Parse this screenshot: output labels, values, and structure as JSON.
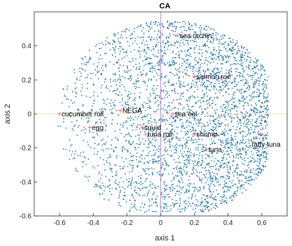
{
  "chart_data": {
    "type": "scatter",
    "title": "CA",
    "xlabel": "axis 1",
    "ylabel": "axis 2",
    "xlim": [
      -0.75,
      0.75
    ],
    "ylim": [
      -0.6,
      0.6
    ],
    "xticks": [
      -0.6,
      -0.4,
      -0.2,
      0,
      0.2,
      0.4,
      0.6
    ],
    "yticks": [
      -0.6,
      -0.4,
      -0.2,
      0,
      0.2,
      0.4
    ],
    "xtick_labels": [
      "-0.6",
      "-0.4",
      "-0.2",
      "0",
      "0.2",
      "0.4",
      "0.6"
    ],
    "ytick_labels": [
      "-0.6",
      "-0.4",
      "-0.2",
      "0",
      "0.2",
      "0.4"
    ],
    "grid": false,
    "respondent_color": "#1f77b4",
    "item_marker_color": "#ff4d4d",
    "labels": [
      {
        "name": "sea urchin",
        "x": 0.1,
        "y": 0.46
      },
      {
        "name": "salmon roe",
        "x": 0.2,
        "y": 0.22
      },
      {
        "name": "cucumber roll",
        "x": -0.6,
        "y": 0.0
      },
      {
        "name": "NEGA",
        "x": -0.24,
        "y": 0.02
      },
      {
        "name": "sea eel",
        "x": 0.07,
        "y": 0.0
      },
      {
        "name": "egg",
        "x": -0.42,
        "y": -0.08
      },
      {
        "name": "squid",
        "x": -0.11,
        "y": -0.08
      },
      {
        "name": "shrimp",
        "x": 0.2,
        "y": -0.12
      },
      {
        "name": "tuna roll",
        "x": -0.09,
        "y": -0.12
      },
      {
        "name": "tuna",
        "x": 0.27,
        "y": -0.21
      },
      {
        "name": "fatty tuna",
        "x": 0.59,
        "y": -0.12
      }
    ]
  }
}
